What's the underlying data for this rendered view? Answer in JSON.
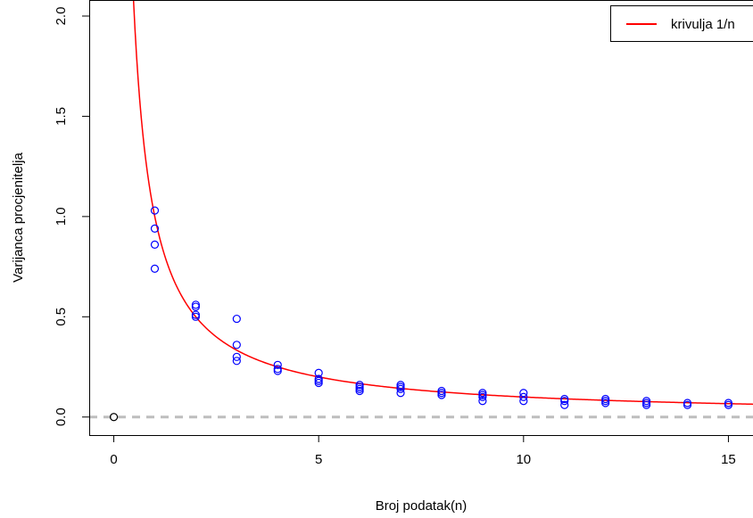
{
  "chart_data": {
    "type": "scatter",
    "title": "",
    "xlabel": "Broj podatak(n)",
    "ylabel": "Varijanca procjenitelja",
    "xlim": [
      -0.6,
      15.6
    ],
    "ylim": [
      -0.09,
      2.08
    ],
    "x_ticks": [
      0,
      5,
      10,
      15
    ],
    "x_tick_labels": [
      "0",
      "5",
      "10",
      "15"
    ],
    "y_ticks": [
      0.0,
      0.5,
      1.0,
      1.5,
      2.0
    ],
    "y_tick_labels": [
      "0.0",
      "0.5",
      "1.0",
      "1.5",
      "2.0"
    ],
    "grid": false,
    "legend": {
      "position": "top-right",
      "entries": [
        {
          "label": "krivulja 1/n",
          "color": "#ff0000",
          "style": "line"
        }
      ]
    },
    "reference_line": {
      "y": 0,
      "color": "#bebebe",
      "style": "dashed"
    },
    "curve": {
      "label": "krivulja 1/n",
      "formula": "1/n",
      "color": "#ff0000",
      "x_range": [
        0.48,
        15.6
      ]
    },
    "series": [
      {
        "marker": "open-circle",
        "color": "#0000ff",
        "points": [
          [
            1,
            1.03
          ],
          [
            1,
            0.94
          ],
          [
            1,
            0.86
          ],
          [
            1,
            0.74
          ],
          [
            2,
            0.56
          ],
          [
            2,
            0.55
          ],
          [
            2,
            0.51
          ],
          [
            2,
            0.5
          ],
          [
            3,
            0.49
          ],
          [
            3,
            0.36
          ],
          [
            3,
            0.3
          ],
          [
            3,
            0.28
          ],
          [
            4,
            0.26
          ],
          [
            4,
            0.24
          ],
          [
            4,
            0.23
          ],
          [
            5,
            0.22
          ],
          [
            5,
            0.19
          ],
          [
            5,
            0.18
          ],
          [
            5,
            0.17
          ],
          [
            6,
            0.16
          ],
          [
            6,
            0.15
          ],
          [
            6,
            0.14
          ],
          [
            6,
            0.13
          ],
          [
            7,
            0.16
          ],
          [
            7,
            0.15
          ],
          [
            7,
            0.14
          ],
          [
            7,
            0.12
          ],
          [
            8,
            0.13
          ],
          [
            8,
            0.12
          ],
          [
            8,
            0.11
          ],
          [
            9,
            0.12
          ],
          [
            9,
            0.11
          ],
          [
            9,
            0.1
          ],
          [
            9,
            0.08
          ],
          [
            10,
            0.12
          ],
          [
            10,
            0.1
          ],
          [
            10,
            0.08
          ],
          [
            11,
            0.09
          ],
          [
            11,
            0.08
          ],
          [
            11,
            0.06
          ],
          [
            12,
            0.09
          ],
          [
            12,
            0.08
          ],
          [
            12,
            0.07
          ],
          [
            13,
            0.08
          ],
          [
            13,
            0.07
          ],
          [
            13,
            0.06
          ],
          [
            14,
            0.07
          ],
          [
            14,
            0.06
          ],
          [
            15,
            0.07
          ],
          [
            15,
            0.06
          ]
        ]
      },
      {
        "marker": "open-circle",
        "color": "#000000",
        "points": [
          [
            0,
            0.0
          ]
        ]
      }
    ]
  }
}
